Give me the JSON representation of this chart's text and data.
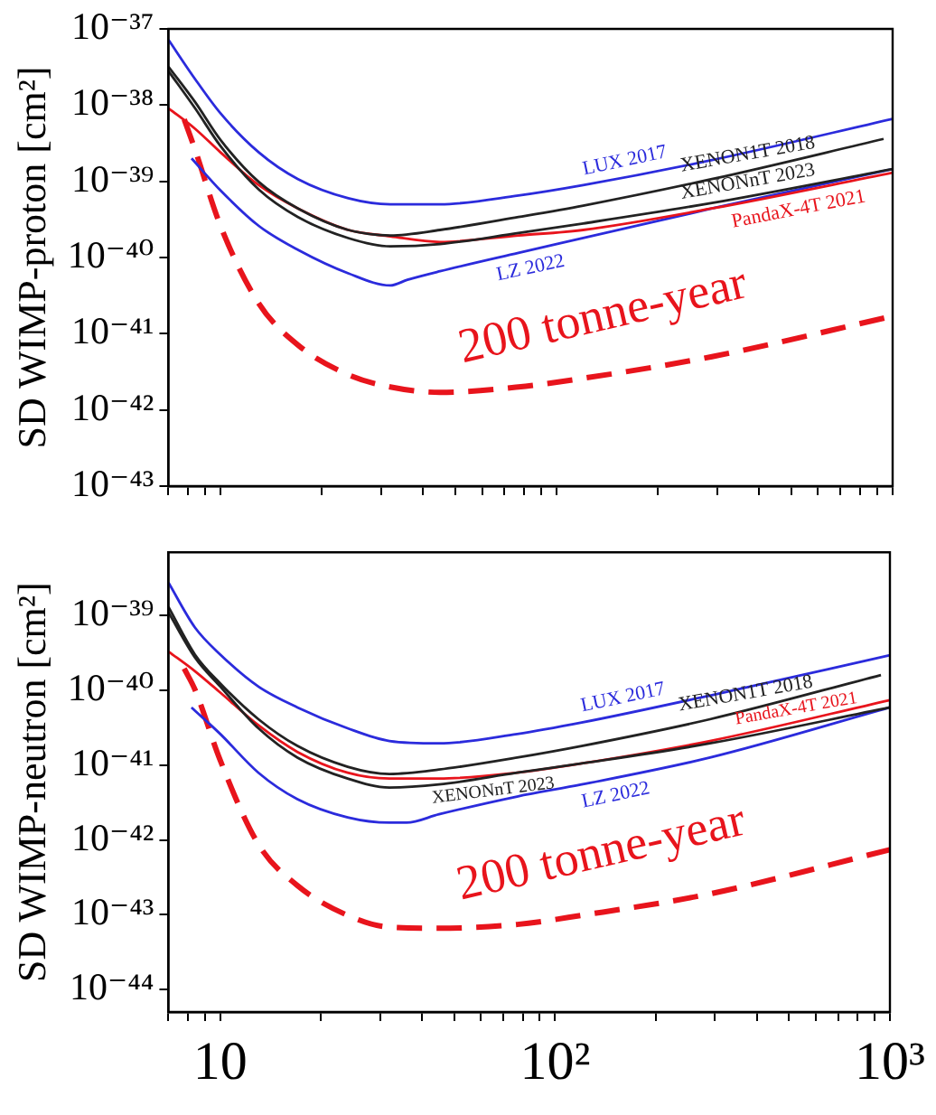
{
  "chart_data": [
    {
      "type": "line",
      "ylabel": "SD WIMP-proton [cm²]",
      "log": "xy",
      "legend": false,
      "marker": "none",
      "tick_labels": "y",
      "xlim": [
        7,
        1000
      ],
      "xticks": [
        {
          "value": 7,
          "label": null
        },
        {
          "value": 8,
          "label": null
        },
        {
          "value": 9,
          "label": null
        },
        {
          "value": 10,
          "label": null
        },
        {
          "value": 20,
          "label": null
        },
        {
          "value": 30,
          "label": null
        },
        {
          "value": 40,
          "label": null
        },
        {
          "value": 50,
          "label": null
        },
        {
          "value": 60,
          "label": null
        },
        {
          "value": 70,
          "label": null
        },
        {
          "value": 80,
          "label": null
        },
        {
          "value": 90,
          "label": null
        },
        {
          "value": 100,
          "label": null
        },
        {
          "value": 200,
          "label": null
        },
        {
          "value": 300,
          "label": null
        },
        {
          "value": 400,
          "label": null
        },
        {
          "value": 500,
          "label": null
        },
        {
          "value": 600,
          "label": null
        },
        {
          "value": 700,
          "label": null
        },
        {
          "value": 800,
          "label": null
        },
        {
          "value": 900,
          "label": null
        },
        {
          "value": 1000,
          "label": null
        }
      ],
      "ylim": [
        1e-43,
        1e-37
      ],
      "yticks": [
        {
          "value": 1e-43,
          "label": "10⁻⁴³"
        },
        {
          "value": 1e-42,
          "label": "10⁻⁴²"
        },
        {
          "value": 1e-41,
          "label": "10⁻⁴¹"
        },
        {
          "value": 1e-40,
          "label": "10⁻⁴⁰"
        },
        {
          "value": 1e-39,
          "label": "10⁻³⁹"
        },
        {
          "value": 1e-38,
          "label": "10⁻³⁸"
        },
        {
          "value": 1e-37,
          "label": "10⁻³⁷"
        }
      ],
      "series": [
        {
          "name": "LUX 2017",
          "color": "#2b2bdc",
          "x": [
            7,
            8.4,
            10,
            13,
            17,
            24,
            32,
            45,
            77,
            120,
            290,
            1000
          ],
          "values": [
            7.2e-38,
            2.2e-38,
            7.8e-39,
            2.4e-39,
            1.07e-39,
            6e-40,
            5e-40,
            5e-40,
            6.5e-40,
            8.9e-40,
            1.9e-39,
            6.6e-39
          ]
        },
        {
          "name": "XENON1T 2018",
          "color": "#222222",
          "x": [
            7,
            8.4,
            10,
            13,
            17,
            24,
            32,
            45,
            77,
            120,
            290,
            940
          ],
          "values": [
            3.2e-38,
            1.1e-38,
            3.5e-39,
            9.8e-40,
            4.4e-40,
            2.3e-40,
            1.95e-40,
            2.3e-40,
            3.4e-40,
            4.8e-40,
            1.07e-39,
            3.6e-39
          ]
        },
        {
          "name": "XENONnT 2023",
          "color": "#222222",
          "x": [
            7,
            8.4,
            10,
            13,
            17,
            24,
            32,
            45,
            77,
            120,
            290,
            1000
          ],
          "values": [
            2.8e-38,
            9.1e-39,
            2.9e-39,
            7.8e-40,
            3.4e-40,
            1.8e-40,
            1.4e-40,
            1.5e-40,
            2.1e-40,
            2.8e-40,
            5.2e-40,
            1.45e-39
          ]
        },
        {
          "name": "PandaX-4T 2021",
          "color": "#e8141c",
          "x": [
            7,
            8.4,
            10,
            13,
            17,
            24,
            32,
            45,
            77,
            120,
            290,
            1000
          ],
          "values": [
            9.1e-39,
            4.9e-39,
            2.4e-39,
            8.9e-40,
            4.4e-40,
            2.3e-40,
            1.9e-40,
            1.6e-40,
            1.95e-40,
            2.3e-40,
            4.4e-40,
            1.3e-39
          ]
        },
        {
          "name": "LZ 2022",
          "color": "#2b2bdc",
          "x": [
            8.2,
            10,
            13,
            17,
            24,
            32,
            36,
            45,
            77,
            120,
            290,
            1000
          ],
          "values": [
            2e-39,
            7.6e-40,
            2.6e-40,
            1.26e-40,
            6.2e-41,
            4.3e-41,
            5.1e-41,
            6.6e-41,
            1.15e-40,
            1.8e-40,
            4.4e-40,
            1.45e-39
          ]
        },
        {
          "name": "200 tonne-year",
          "color": "#e8141c",
          "line_style": "dashed",
          "x": [
            7.8,
            8.4,
            10,
            13,
            17,
            24,
            32,
            45,
            77,
            120,
            290,
            1000
          ],
          "values": [
            6.5e-39,
            2.6e-39,
            2.6e-40,
            2.5e-41,
            7.1e-42,
            2.9e-42,
            2e-42,
            1.7e-42,
            2e-42,
            2.6e-42,
            5e-42,
            1.7e-41
          ]
        }
      ]
    },
    {
      "type": "line",
      "ylabel": "SD WIMP-neutron [cm²]",
      "log": "xy",
      "legend": false,
      "marker": "none",
      "xlim": [
        7,
        1000
      ],
      "xticks": [
        {
          "value": 7,
          "label": null
        },
        {
          "value": 8,
          "label": null
        },
        {
          "value": 9,
          "label": null
        },
        {
          "value": 10,
          "label": "10"
        },
        {
          "value": 20,
          "label": null
        },
        {
          "value": 30,
          "label": null
        },
        {
          "value": 40,
          "label": null
        },
        {
          "value": 50,
          "label": null
        },
        {
          "value": 60,
          "label": null
        },
        {
          "value": 70,
          "label": null
        },
        {
          "value": 80,
          "label": null
        },
        {
          "value": 90,
          "label": null
        },
        {
          "value": 100,
          "label": "10²"
        },
        {
          "value": 200,
          "label": null
        },
        {
          "value": 300,
          "label": null
        },
        {
          "value": 400,
          "label": null
        },
        {
          "value": 500,
          "label": null
        },
        {
          "value": 600,
          "label": null
        },
        {
          "value": 700,
          "label": null
        },
        {
          "value": 800,
          "label": null
        },
        {
          "value": 900,
          "label": null
        },
        {
          "value": 1000,
          "label": "10³"
        }
      ],
      "ylim": [
        5e-45,
        7e-39
      ],
      "yticks": [
        {
          "value": 1e-44,
          "label": "10⁻⁴⁴"
        },
        {
          "value": 1e-43,
          "label": "10⁻⁴³"
        },
        {
          "value": 1e-42,
          "label": "10⁻⁴²"
        },
        {
          "value": 1e-41,
          "label": "10⁻⁴¹"
        },
        {
          "value": 1e-40,
          "label": "10⁻⁴⁰"
        },
        {
          "value": 1e-39,
          "label": "10⁻³⁹"
        }
      ],
      "series": [
        {
          "name": "LUX 2017",
          "color": "#2b2bdc",
          "x": [
            7,
            8.4,
            10,
            13,
            17,
            24,
            32,
            45,
            77,
            120,
            290,
            1000
          ],
          "values": [
            2.75e-39,
            6.9e-40,
            3e-40,
            1.12e-40,
            5.9e-41,
            3.1e-41,
            2.1e-41,
            1.95e-41,
            2.6e-41,
            3.7e-41,
            8.5e-41,
            2.95e-40
          ]
        },
        {
          "name": "XENON1T 2018",
          "color": "#222222",
          "x": [
            7,
            8.4,
            10,
            13,
            17,
            24,
            32,
            45,
            77,
            120,
            290,
            940
          ],
          "values": [
            1.3e-39,
            3e-40,
            1.23e-40,
            4.1e-41,
            1.8e-41,
            9.5e-42,
            7.6e-42,
            8.7e-42,
            1.26e-41,
            1.8e-41,
            4.1e-41,
            1.6e-40
          ]
        },
        {
          "name": "XENONnT 2023",
          "color": "#222222",
          "x": [
            7,
            8.4,
            10,
            13,
            17,
            24,
            32,
            45,
            77,
            120,
            290,
            1000
          ],
          "values": [
            1.1e-39,
            2.75e-40,
            1.12e-40,
            3.1e-41,
            1.26e-41,
            6.6e-42,
            5e-42,
            5.5e-42,
            7.9e-42,
            1.05e-41,
            1.95e-41,
            5.9e-41
          ]
        },
        {
          "name": "PandaX-4T 2021",
          "color": "#e8141c",
          "x": [
            7,
            8.4,
            10,
            13,
            17,
            24,
            32,
            45,
            77,
            120,
            290,
            1000
          ],
          "values": [
            3.3e-40,
            1.8e-40,
            9.3e-41,
            3.4e-41,
            1.5e-41,
            7.9e-42,
            6.6e-42,
            6.6e-42,
            7.9e-42,
            1.05e-41,
            2.1e-41,
            7.4e-41
          ]
        },
        {
          "name": "LZ 2022",
          "color": "#2b2bdc",
          "x": [
            8.2,
            10,
            13,
            17,
            24,
            32,
            36,
            45,
            77,
            120,
            290,
            1000
          ],
          "values": [
            5.9e-41,
            2.6e-41,
            7.9e-42,
            3.5e-42,
            2e-42,
            1.7e-42,
            1.7e-42,
            2.2e-42,
            3.8e-42,
            5.5e-42,
            1.26e-41,
            5.9e-41
          ]
        },
        {
          "name": "200 tonne-year",
          "color": "#e8141c",
          "line_style": "dashed",
          "x": [
            7.8,
            8.4,
            10,
            13,
            17,
            24,
            32,
            45,
            77,
            120,
            290,
            1000
          ],
          "values": [
            1.95e-40,
            1.02e-40,
            1.15e-41,
            8.7e-43,
            2.45e-43,
            9.8e-44,
            6.8e-44,
            6.6e-44,
            7.4e-44,
            9.8e-44,
            1.9e-43,
            7.4e-43
          ]
        }
      ]
    }
  ]
}
